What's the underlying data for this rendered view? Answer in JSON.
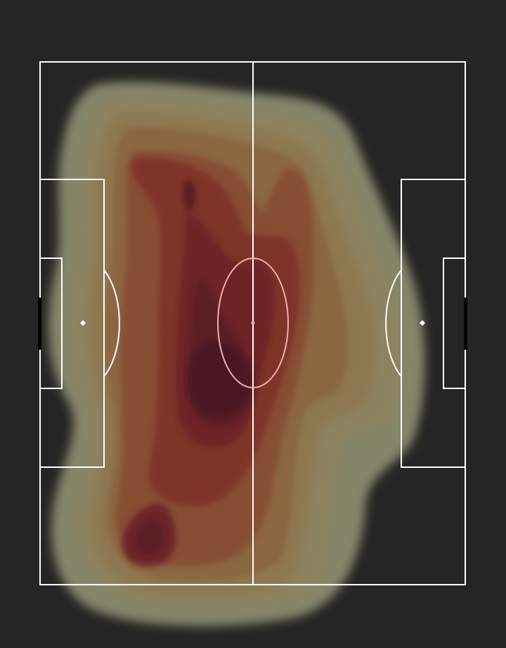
{
  "theme": {
    "background": "#252525",
    "pitch_line": "#ffffff",
    "goal": "#000000"
  },
  "heatmap": {
    "color_scale": [
      "#8a8a6e",
      "#8e835f",
      "#8c7750",
      "#8a6641",
      "#864d33",
      "#7e3328",
      "#6e2227",
      "#581b25",
      "#4a1624"
    ],
    "opacity": 0.95
  }
}
